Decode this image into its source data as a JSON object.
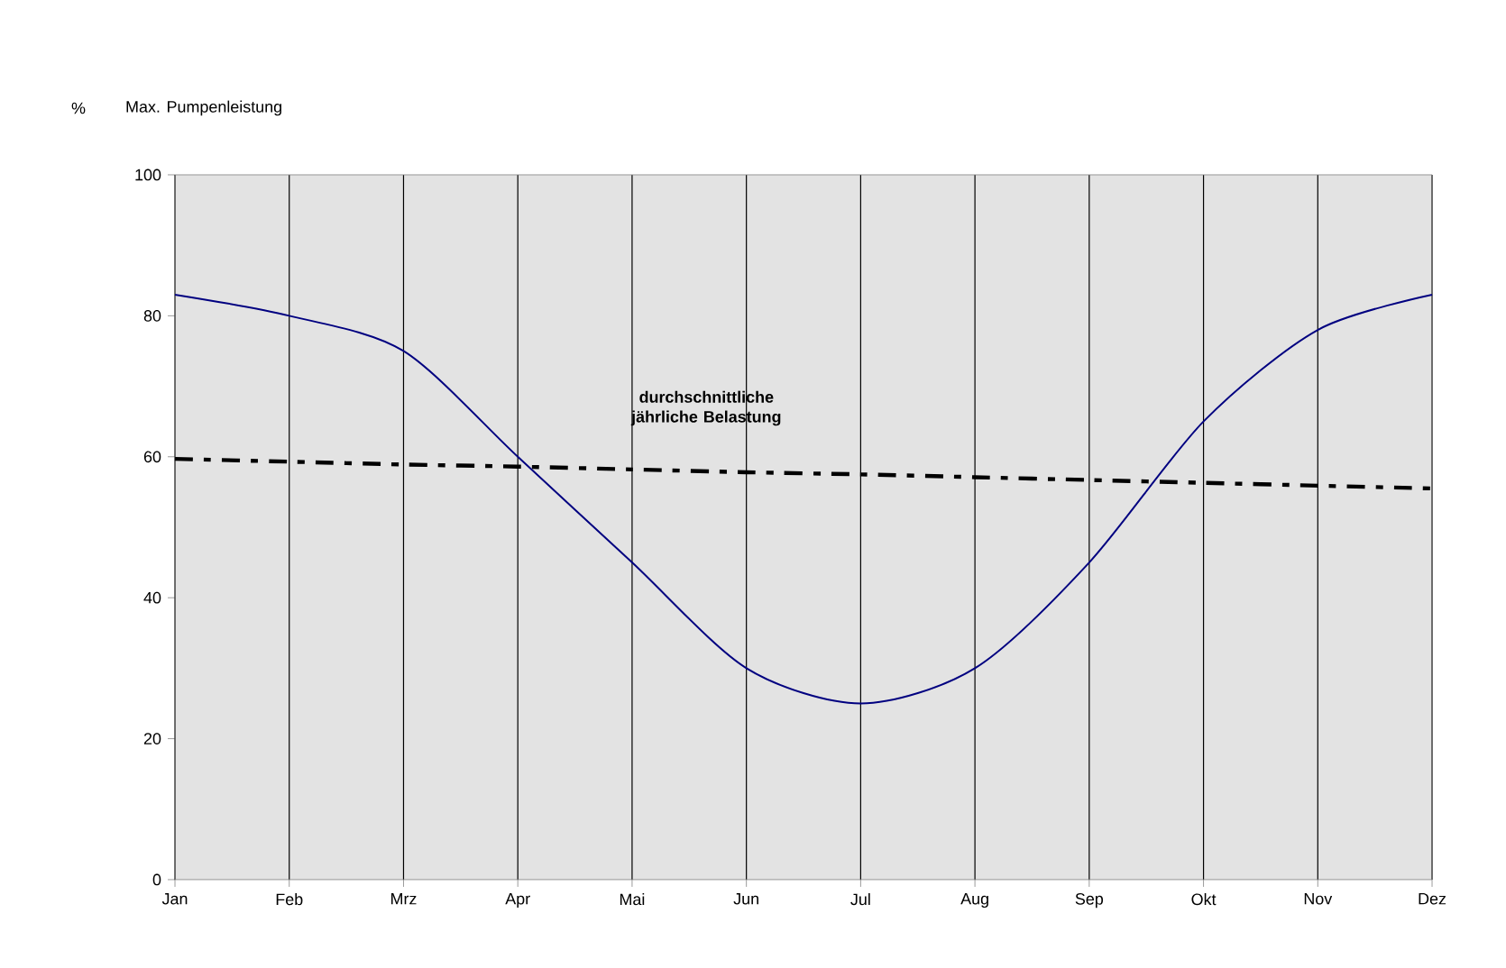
{
  "chart_data": {
    "type": "line",
    "title": "Max. Pumpenleistung",
    "ylabel": "%",
    "categories": [
      "Jan",
      "Feb",
      "Mrz",
      "Apr",
      "Mai",
      "Jun",
      "Jul",
      "Aug",
      "Sep",
      "Okt",
      "Nov",
      "Dez"
    ],
    "series": [
      {
        "color": "#000080",
        "line_style": "solid",
        "values": [
          83,
          80,
          75,
          60,
          45,
          30,
          25,
          30,
          45,
          65,
          78,
          83
        ]
      },
      {
        "name": "durchschnittliche jährliche Belastung",
        "color": "#000000",
        "line_style": "dashed",
        "values": [
          59.7,
          59.3,
          58.9,
          58.6,
          58.2,
          57.8,
          57.5,
          57.1,
          56.7,
          56.3,
          55.9,
          55.5
        ]
      }
    ],
    "ylim": [
      0,
      100
    ],
    "yticks": [
      0,
      20,
      40,
      60,
      80,
      100
    ],
    "grid": "x",
    "marker": "none"
  }
}
